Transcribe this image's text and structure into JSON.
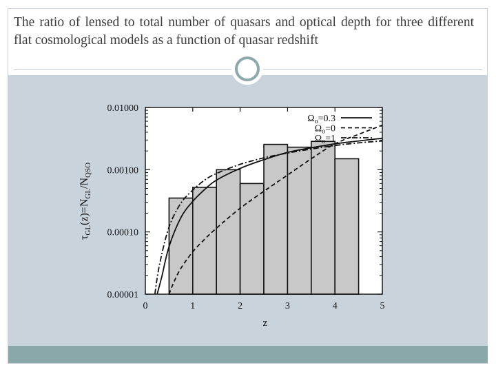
{
  "slide": {
    "title": "The ratio of lensed to total number of quasars and optical depth for three different flat cosmological models as a function of quasar redshift"
  },
  "colors": {
    "content_band": "#c9d3dc",
    "footer_band": "#8aa7aa",
    "ring": "#8ea9ab",
    "bar_fill": "#c8c8c8"
  },
  "chart_data": {
    "type": "bar",
    "title": "",
    "xlabel": "z",
    "ylabel": "τGL(z)=NGL/NQSO",
    "y_scale": "log",
    "xlim": [
      0,
      5
    ],
    "ylim": [
      1e-05,
      0.01
    ],
    "x_ticks": [
      "0",
      "1",
      "2",
      "3",
      "4",
      "5"
    ],
    "y_ticks": [
      "0.00001",
      "0.00010",
      "0.00100",
      "0.01000"
    ],
    "bars": [
      {
        "x_start": 0.5,
        "x_end": 1.0,
        "value": 0.00035
      },
      {
        "x_start": 1.0,
        "x_end": 1.5,
        "value": 0.00052
      },
      {
        "x_start": 1.5,
        "x_end": 2.0,
        "value": 0.001
      },
      {
        "x_start": 2.0,
        "x_end": 2.5,
        "value": 0.0006
      },
      {
        "x_start": 2.5,
        "x_end": 3.0,
        "value": 0.00255
      },
      {
        "x_start": 3.0,
        "x_end": 3.5,
        "value": 0.0023
      },
      {
        "x_start": 3.5,
        "x_end": 4.0,
        "value": 0.00285
      },
      {
        "x_start": 4.0,
        "x_end": 4.5,
        "value": 0.0015
      }
    ],
    "series": [
      {
        "name": "Ωo=0.3",
        "style": "solid",
        "x": [
          0.25,
          0.35,
          0.5,
          0.75,
          1.0,
          1.25,
          1.5,
          2.0,
          2.5,
          3.0,
          3.5,
          4.0,
          4.5,
          5.0
        ],
        "y": [
          1e-05,
          1.95e-05,
          5.8e-05,
          0.00017,
          0.00031,
          0.00048,
          0.00068,
          0.00105,
          0.00145,
          0.0019,
          0.00225,
          0.0026,
          0.0029,
          0.0032
        ]
      },
      {
        "name": "Ωo=0",
        "style": "dashed",
        "x": [
          0.5,
          0.6,
          0.75,
          1.0,
          1.25,
          1.5,
          2.0,
          2.5,
          3.0,
          3.5,
          4.0,
          4.5,
          5.0
        ],
        "y": [
          1e-05,
          1.55e-05,
          2.6e-05,
          4.8e-05,
          7.6e-05,
          0.000115,
          0.00024,
          0.00045,
          0.00082,
          0.0015,
          0.0026,
          0.0037,
          0.0052
        ]
      },
      {
        "name": "Ωo=1",
        "style": "dashdot",
        "x": [
          0.2,
          0.3,
          0.5,
          0.75,
          1.0,
          1.25,
          1.5,
          2.0,
          2.5,
          3.0,
          3.5,
          4.0,
          4.5,
          5.0
        ],
        "y": [
          1e-05,
          3e-05,
          0.00012,
          0.00029,
          0.00047,
          0.00068,
          0.00087,
          0.00122,
          0.00155,
          0.00185,
          0.00215,
          0.00245,
          0.0027,
          0.0029
        ]
      }
    ],
    "legend": [
      {
        "label": "Ωo=0.3",
        "style": "solid"
      },
      {
        "label": "Ωo=0",
        "style": "dashed"
      },
      {
        "label": "Ωo=1",
        "style": "dashdot"
      }
    ],
    "legend_position": "top-right",
    "grid": false
  }
}
